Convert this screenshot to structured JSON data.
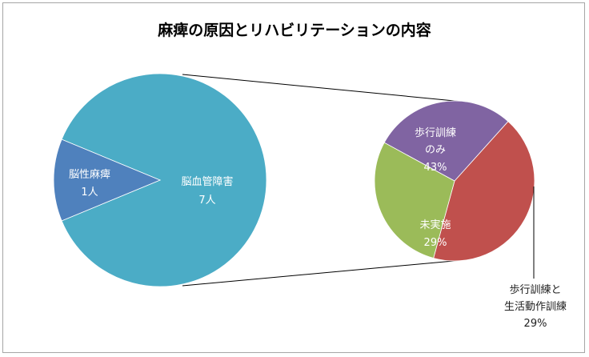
{
  "chart_data": {
    "type": "pie-of-pie",
    "title": "麻痺の原因とリハビリテーションの内容",
    "primary": {
      "slices": [
        {
          "label": "脳血管障害",
          "value": 7,
          "value_label": "7人",
          "color": "#4bacc6"
        },
        {
          "label": "脳性麻痺",
          "value": 1,
          "value_label": "1人",
          "color": "#4f81bd"
        }
      ]
    },
    "secondary": {
      "parent": "脳血管障害",
      "slices": [
        {
          "label": "歩行訓練のみ",
          "label_lines": [
            "歩行訓練",
            "のみ"
          ],
          "value": 43,
          "value_label": "43%",
          "color": "#c0504d"
        },
        {
          "label": "歩行訓練と生活動作訓練",
          "label_lines": [
            "歩行訓練と",
            "生活動作訓練"
          ],
          "value": 29,
          "value_label": "29%",
          "color": "#9bbb59"
        },
        {
          "label": "未実施",
          "label_lines": [
            "未実施"
          ],
          "value": 29,
          "value_label": "29%",
          "color": "#8064a2"
        }
      ]
    },
    "legend": "none"
  }
}
